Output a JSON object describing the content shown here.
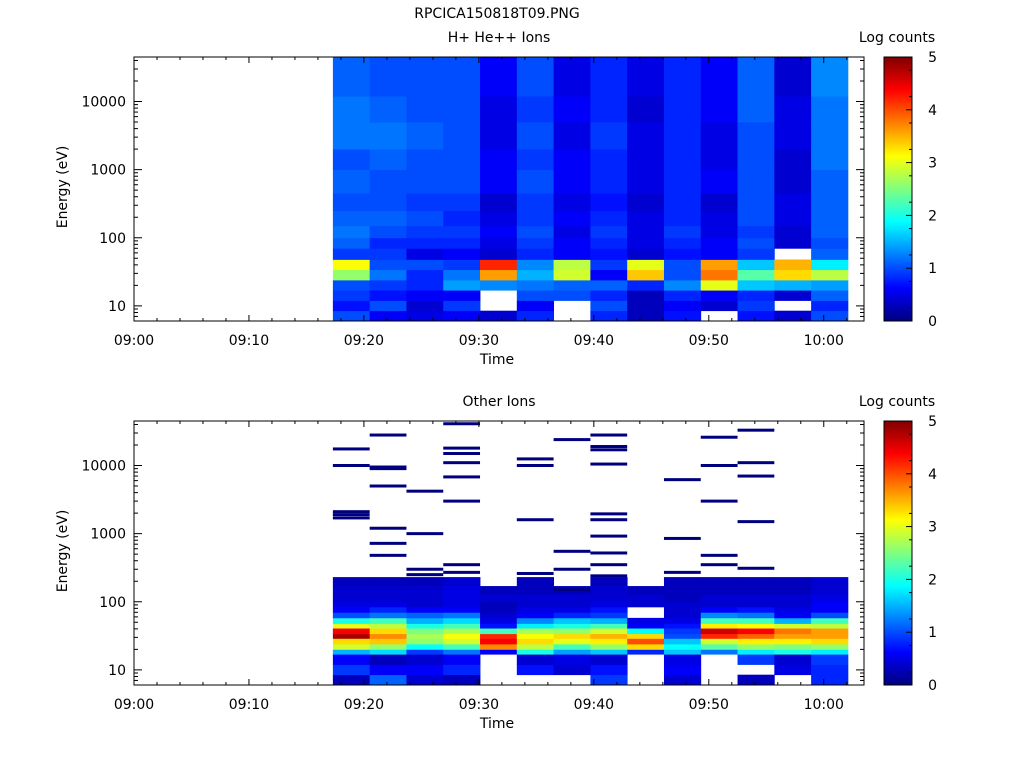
{
  "page": {
    "title": "RPCICA150818T09.PNG"
  },
  "colorbar": {
    "label": "Log counts",
    "ticks": [
      "0",
      "1",
      "2",
      "3",
      "4",
      "5"
    ],
    "range": [
      0,
      5
    ],
    "colormap": [
      "#00007f",
      "#0000ff",
      "#007fff",
      "#00ffff",
      "#7fff7f",
      "#ffff00",
      "#ff7f00",
      "#ff0000",
      "#7f0000"
    ]
  },
  "chart_data": [
    {
      "type": "heatmap",
      "title": "H+ He++ Ions",
      "xlabel": "Time",
      "ylabel": "Energy (eV)",
      "x_ticks": [
        "09:00",
        "09:10",
        "09:20",
        "09:30",
        "09:40",
        "09:50",
        "10:00"
      ],
      "y_ticks": [
        "10",
        "100",
        "1000",
        "10000"
      ],
      "y_scale": "log",
      "ylim": [
        6,
        45000
      ],
      "xlim_minutes_after_0900": [
        0,
        63.5
      ],
      "data_start_minute": 17.3,
      "column_width_minutes": 3.2,
      "bin_edges_eV": [
        6,
        8.5,
        12,
        17,
        24,
        34,
        48,
        70,
        100,
        150,
        250,
        450,
        1000,
        2000,
        5000,
        12000,
        45000
      ],
      "columns": [
        [
          1.0,
          0.7,
          0.9,
          1.0,
          2.6,
          3.1,
          0.9,
          1.1,
          1.2,
          1.1,
          1.0,
          1.1,
          1.0,
          1.2,
          1.2,
          1.1
        ],
        [
          0.6,
          1.0,
          0.7,
          0.9,
          1.2,
          1.0,
          0.9,
          0.8,
          1.0,
          1.1,
          1.0,
          1.0,
          1.1,
          1.2,
          1.1,
          1.0
        ],
        [
          0.5,
          0.4,
          0.6,
          0.8,
          0.8,
          1.0,
          0.5,
          0.8,
          0.9,
          1.0,
          0.9,
          1.0,
          1.0,
          1.1,
          1.0,
          1.0
        ],
        [
          0.6,
          0.9,
          0.6,
          1.4,
          1.2,
          0.9,
          0.6,
          0.8,
          0.9,
          0.8,
          0.9,
          1.0,
          1.0,
          1.0,
          1.0,
          1.0
        ],
        [
          0.4,
          null,
          null,
          1.3,
          3.6,
          4.2,
          0.4,
          0.5,
          0.6,
          0.5,
          0.4,
          0.6,
          0.6,
          0.5,
          0.5,
          0.6
        ],
        [
          0.8,
          0.6,
          1.0,
          1.2,
          1.5,
          1.3,
          0.8,
          0.9,
          1.0,
          0.9,
          0.9,
          1.0,
          0.9,
          1.0,
          0.9,
          1.0
        ],
        [
          null,
          null,
          1.0,
          1.1,
          2.9,
          2.8,
          0.6,
          0.6,
          0.5,
          0.6,
          0.5,
          0.6,
          0.6,
          0.5,
          0.6,
          0.5
        ],
        [
          0.8,
          1.0,
          0.8,
          1.1,
          0.6,
          0.9,
          0.7,
          0.8,
          0.9,
          0.8,
          0.7,
          0.8,
          0.8,
          0.9,
          0.8,
          0.8
        ],
        [
          0.3,
          0.3,
          0.3,
          0.8,
          3.4,
          3.0,
          0.4,
          0.5,
          0.5,
          0.5,
          0.4,
          0.5,
          0.5,
          0.5,
          0.4,
          0.5
        ],
        [
          0.7,
          0.6,
          0.8,
          1.3,
          1.0,
          1.0,
          0.7,
          0.8,
          0.9,
          0.8,
          0.8,
          0.8,
          0.8,
          0.8,
          0.8,
          0.8
        ],
        [
          null,
          0.4,
          0.6,
          3.0,
          3.8,
          3.6,
          0.6,
          0.6,
          0.5,
          0.5,
          0.4,
          0.6,
          0.5,
          0.5,
          0.6,
          0.6
        ],
        [
          0.7,
          0.9,
          0.8,
          1.6,
          2.3,
          1.6,
          0.9,
          1.0,
          0.9,
          1.0,
          1.0,
          1.0,
          1.0,
          1.0,
          1.1,
          1.1
        ],
        [
          0.4,
          null,
          0.4,
          1.5,
          3.3,
          3.5,
          null,
          0.4,
          0.4,
          0.5,
          0.5,
          0.4,
          0.4,
          0.5,
          0.5,
          0.4
        ],
        [
          1.0,
          0.8,
          1.1,
          1.4,
          2.8,
          1.8,
          1.1,
          1.0,
          1.1,
          1.1,
          1.1,
          1.1,
          1.2,
          1.2,
          1.2,
          1.3
        ]
      ]
    },
    {
      "type": "heatmap",
      "title": "Other Ions",
      "xlabel": "Time",
      "ylabel": "Energy (eV)",
      "x_ticks": [
        "09:00",
        "09:10",
        "09:20",
        "09:30",
        "09:40",
        "09:50",
        "10:00"
      ],
      "y_ticks": [
        "10",
        "100",
        "1000",
        "10000"
      ],
      "y_scale": "log",
      "ylim": [
        6,
        45000
      ],
      "xlim_minutes_after_0900": [
        0,
        63.5
      ],
      "data_start_minute": 17.3,
      "column_width_minutes": 3.2,
      "bin_edges_eV": [
        6,
        8.5,
        12,
        17,
        20,
        24,
        29,
        34,
        41,
        48,
        58,
        70,
        84,
        100,
        130,
        170,
        230
      ],
      "columns": [
        [
          0.3,
          0.9,
          0.6,
          1.5,
          2.9,
          3.3,
          4.8,
          4.4,
          3.0,
          2.0,
          1.0,
          0.6,
          0.5,
          0.4,
          0.4,
          0.3
        ],
        [
          1.1,
          0.6,
          0.3,
          1.7,
          2.6,
          3.4,
          3.7,
          3.3,
          2.8,
          2.2,
          1.2,
          0.8,
          0.5,
          0.4,
          0.4,
          0.3
        ],
        [
          0.4,
          0.6,
          0.4,
          0.9,
          1.9,
          2.6,
          2.7,
          2.5,
          2.0,
          1.5,
          1.1,
          0.6,
          0.4,
          0.4,
          0.4,
          0.3
        ],
        [
          0.3,
          0.8,
          0.6,
          1.2,
          2.2,
          2.9,
          3.1,
          2.7,
          2.2,
          1.7,
          1.2,
          0.6,
          0.5,
          0.5,
          0.5,
          0.4
        ],
        [
          null,
          null,
          null,
          0.6,
          3.7,
          4.4,
          4.2,
          2.2,
          0.7,
          0.5,
          0.4,
          0.3,
          0.3,
          0.4,
          0.3,
          null
        ],
        [
          null,
          0.7,
          0.4,
          2.0,
          2.8,
          3.3,
          3.1,
          2.7,
          1.8,
          1.3,
          0.6,
          0.5,
          0.4,
          0.4,
          0.3,
          0.3
        ],
        [
          null,
          0.4,
          0.5,
          1.4,
          2.2,
          3.0,
          3.3,
          2.6,
          2.0,
          1.6,
          0.8,
          0.5,
          0.4,
          0.4,
          0.3,
          null
        ],
        [
          0.9,
          0.7,
          0.4,
          1.6,
          2.6,
          3.2,
          3.5,
          2.9,
          2.2,
          1.5,
          0.9,
          0.7,
          0.5,
          0.4,
          0.4,
          0.3
        ],
        [
          null,
          null,
          null,
          0.8,
          3.3,
          4.0,
          3.3,
          1.9,
          0.6,
          0.5,
          null,
          null,
          0.4,
          0.4,
          0.3,
          null
        ],
        [
          0.4,
          0.6,
          0.5,
          1.6,
          1.9,
          1.6,
          1.0,
          0.9,
          0.7,
          0.5,
          0.4,
          0.4,
          0.4,
          0.3,
          0.3,
          0.3
        ],
        [
          null,
          null,
          null,
          1.2,
          2.3,
          2.9,
          4.2,
          4.6,
          3.2,
          2.2,
          1.3,
          0.6,
          0.4,
          0.4,
          0.3,
          0.3
        ],
        [
          0.3,
          null,
          0.9,
          1.8,
          2.6,
          3.2,
          3.9,
          4.4,
          3.1,
          2.2,
          1.2,
          0.7,
          0.4,
          0.4,
          0.3,
          0.3
        ],
        [
          null,
          0.5,
          0.4,
          2.0,
          2.5,
          3.2,
          3.6,
          3.8,
          2.9,
          1.5,
          0.6,
          0.5,
          0.4,
          0.4,
          0.3,
          0.3
        ],
        [
          0.8,
          0.8,
          0.9,
          1.8,
          2.6,
          3.3,
          3.6,
          3.6,
          2.8,
          2.2,
          1.0,
          0.6,
          0.6,
          0.5,
          0.4,
          0.4
        ]
      ],
      "sparse_high_energy_lines": [
        [
          1700,
          1900,
          2100,
          10000,
          17500
        ],
        [
          480,
          720,
          1200,
          5000,
          9000,
          9500,
          28000
        ],
        [
          250,
          300,
          1000,
          4200
        ],
        [
          270,
          350,
          3000,
          6800,
          11000,
          15000,
          18000,
          41000
        ],
        [],
        [
          260,
          1600,
          10000,
          12500
        ],
        [
          150,
          300,
          550,
          24000
        ],
        [
          240,
          350,
          520,
          920,
          1600,
          1950,
          10500,
          17000,
          19000,
          28000
        ],
        [],
        [
          270,
          850,
          6200
        ],
        [
          350,
          480,
          3000,
          10000,
          26000
        ],
        [
          310,
          1500,
          7000,
          11000,
          33000
        ]
      ]
    }
  ]
}
